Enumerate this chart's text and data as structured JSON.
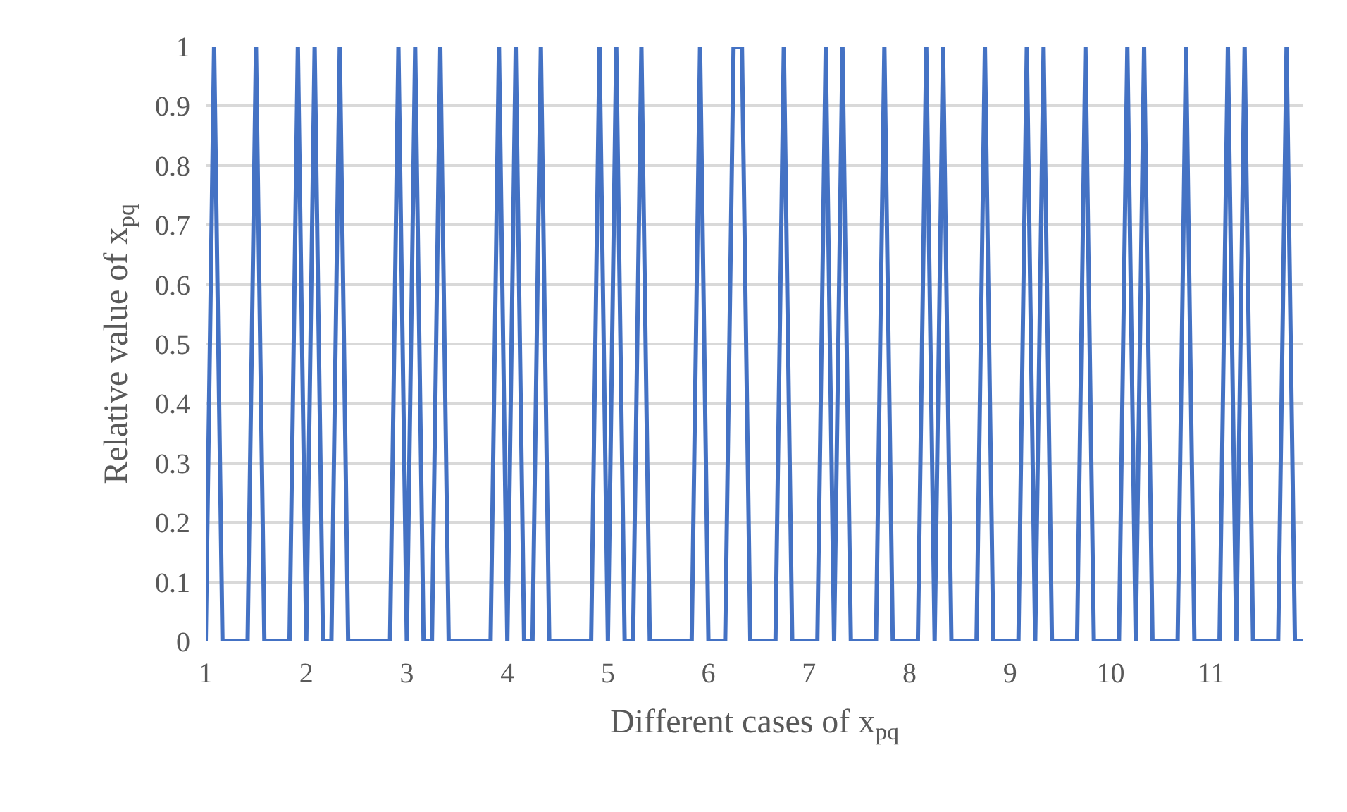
{
  "chart_data": {
    "type": "line",
    "xlabel": "Different cases of x$_{pq}$",
    "ylabel": "Relative value of x$_{pq}$",
    "categories": [
      "1",
      null,
      null,
      null,
      null,
      null,
      null,
      null,
      null,
      null,
      null,
      null,
      "2",
      null,
      null,
      null,
      null,
      null,
      null,
      null,
      null,
      null,
      null,
      null,
      "3",
      null,
      null,
      null,
      null,
      null,
      null,
      null,
      null,
      null,
      null,
      null,
      "4",
      null,
      null,
      null,
      null,
      null,
      null,
      null,
      null,
      null,
      null,
      null,
      "5",
      null,
      null,
      null,
      null,
      null,
      null,
      null,
      null,
      null,
      null,
      null,
      "6",
      null,
      null,
      null,
      null,
      null,
      null,
      null,
      null,
      null,
      null,
      null,
      "7",
      null,
      null,
      null,
      null,
      null,
      null,
      null,
      null,
      null,
      null,
      null,
      "8",
      null,
      null,
      null,
      null,
      null,
      null,
      null,
      null,
      null,
      null,
      null,
      "9",
      null,
      null,
      null,
      null,
      null,
      null,
      null,
      null,
      null,
      null,
      null,
      "10",
      null,
      null,
      null,
      null,
      null,
      null,
      null,
      null,
      null,
      null,
      null,
      "11",
      null,
      null,
      null,
      null,
      null,
      null,
      null,
      null,
      null,
      null,
      null
    ],
    "series": [
      {
        "color": "#4472c4",
        "values": [
          0,
          1,
          0,
          0,
          0,
          0,
          1,
          0,
          0,
          0,
          0,
          1,
          0,
          1,
          0,
          0,
          1,
          0,
          0,
          0,
          0,
          0,
          0,
          1,
          0,
          1,
          0,
          0,
          1,
          0,
          0,
          0,
          0,
          0,
          0,
          1,
          0,
          1,
          0,
          0,
          1,
          0,
          0,
          0,
          0,
          0,
          0,
          1,
          0,
          1,
          0,
          0,
          1,
          0,
          0,
          0,
          0,
          0,
          0,
          1,
          0,
          0,
          0,
          1,
          1,
          0,
          0,
          0,
          0,
          1,
          0,
          0,
          0,
          0,
          1,
          0,
          1,
          0,
          0,
          0,
          0,
          1,
          0,
          0,
          0,
          0,
          1,
          0,
          1,
          0,
          0,
          0,
          0,
          1,
          0,
          0,
          0,
          0,
          1,
          0,
          1,
          0,
          0,
          0,
          0,
          1,
          0,
          0,
          0,
          0,
          1,
          0,
          1,
          0,
          0,
          0,
          0,
          1,
          0,
          0,
          0,
          0,
          1,
          0,
          1,
          0,
          0,
          0,
          0,
          1,
          0,
          0
        ]
      }
    ],
    "ylim": [
      0,
      1
    ],
    "yticks": [
      0,
      0.1,
      0.2,
      0.3,
      0.4,
      0.5,
      0.6,
      0.7,
      0.8,
      0.9,
      1
    ],
    "grid": "y",
    "marker": "none",
    "line_style": "solid"
  }
}
